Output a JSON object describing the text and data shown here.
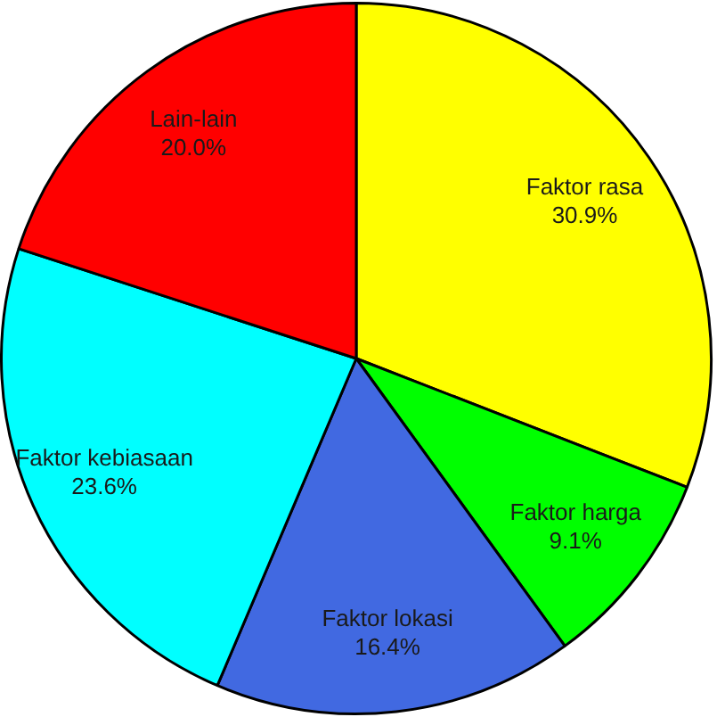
{
  "chart_data": {
    "type": "pie",
    "categories": [
      "Faktor rasa",
      "Faktor harga",
      "Faktor lokasi",
      "Faktor kebiasaan",
      "Lain-lain"
    ],
    "values": [
      30.9,
      9.1,
      16.4,
      23.6,
      20.0
    ],
    "colors": [
      "#ffff00",
      "#00ff00",
      "#4169e1",
      "#00ffff",
      "#ff0000"
    ],
    "value_labels": [
      "30.9%",
      "9.1%",
      "16.4%",
      "23.6%",
      "20.0%"
    ]
  }
}
